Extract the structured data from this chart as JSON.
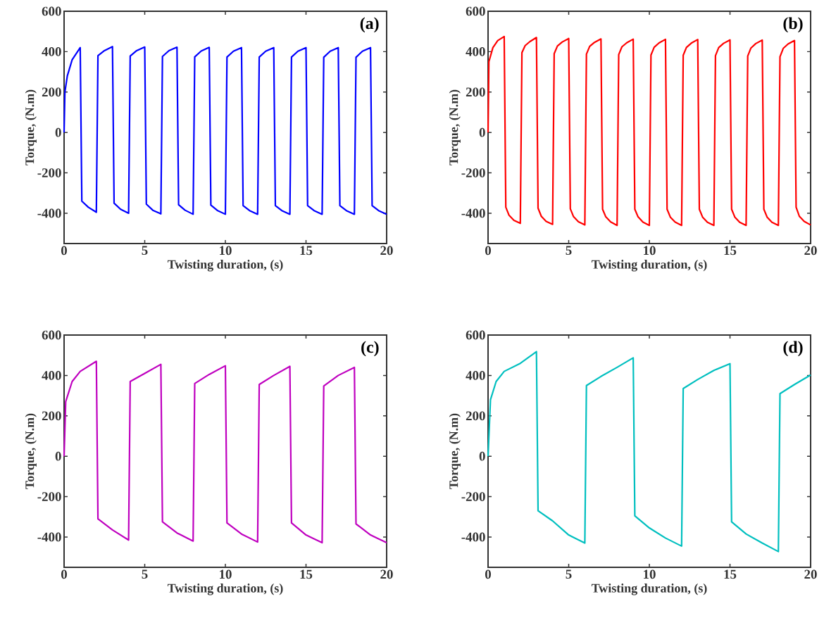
{
  "chart_data": [
    {
      "type": "line",
      "xlabel": "Twisting duration, (s)",
      "ylabel": "Torque, (N.m)",
      "xlim": [
        0,
        20
      ],
      "ylim": [
        -550,
        600
      ],
      "xticks": [
        0,
        5,
        10,
        15,
        20
      ],
      "yticks": [
        -400,
        -200,
        0,
        200,
        400,
        600
      ],
      "annotations": [
        "(a)"
      ],
      "series": [
        {
          "color": "#0000ff",
          "x": [
            0,
            0.05,
            0.2,
            0.5,
            1,
            1.1,
            1.5,
            2,
            2.1,
            2.5,
            3,
            3.1,
            3.5,
            4,
            4.1,
            4.5,
            5,
            5.1,
            5.5,
            6,
            6.1,
            6.5,
            7,
            7.1,
            7.5,
            8,
            8.1,
            8.5,
            9,
            9.1,
            9.5,
            10,
            10.1,
            10.5,
            11,
            11.1,
            11.5,
            12,
            12.1,
            12.5,
            13,
            13.1,
            13.5,
            14,
            14.1,
            14.5,
            15,
            15.1,
            15.5,
            16,
            16.1,
            16.5,
            17,
            17.1,
            17.5,
            18,
            18.1,
            18.5,
            19,
            19.1,
            19.5,
            20
          ],
          "values": [
            0,
            200,
            280,
            360,
            420,
            -340,
            -370,
            -395,
            380,
            405,
            425,
            -350,
            -380,
            -400,
            378,
            405,
            423,
            -355,
            -385,
            -403,
            376,
            405,
            422,
            -358,
            -385,
            -405,
            374,
            403,
            421,
            -360,
            -386,
            -405,
            373,
            402,
            420,
            -362,
            -387,
            -405,
            373,
            402,
            420,
            -362,
            -387,
            -405,
            373,
            402,
            420,
            -362,
            -387,
            -405,
            372,
            402,
            420,
            -362,
            -387,
            -405,
            372,
            402,
            420,
            -362,
            -387,
            -405
          ]
        }
      ]
    },
    {
      "type": "line",
      "xlabel": "Twisting duration, (s)",
      "ylabel": "Torque, (N.m)",
      "xlim": [
        0,
        20
      ],
      "ylim": [
        -550,
        600
      ],
      "xticks": [
        0,
        5,
        10,
        15,
        20
      ],
      "yticks": [
        -400,
        -200,
        0,
        200,
        400,
        600
      ],
      "annotations": [
        "(b)"
      ],
      "series": [
        {
          "color": "#ff0000",
          "x": [
            0,
            0.05,
            0.3,
            0.6,
            1,
            1.1,
            1.3,
            1.6,
            2,
            2.1,
            2.3,
            2.6,
            3,
            3.1,
            3.3,
            3.6,
            4,
            4.1,
            4.3,
            4.6,
            5,
            5.1,
            5.3,
            5.6,
            6,
            6.1,
            6.3,
            6.6,
            7,
            7.1,
            7.3,
            7.6,
            8,
            8.1,
            8.3,
            8.6,
            9,
            9.1,
            9.3,
            9.6,
            10,
            10.1,
            10.3,
            10.6,
            11,
            11.1,
            11.3,
            11.6,
            12,
            12.1,
            12.3,
            12.6,
            13,
            13.1,
            13.3,
            13.6,
            14,
            14.1,
            14.3,
            14.6,
            15,
            15.1,
            15.3,
            15.6,
            16,
            16.1,
            16.3,
            16.6,
            17,
            17.1,
            17.3,
            17.6,
            18,
            18.1,
            18.3,
            18.6,
            19,
            19.1,
            19.3,
            19.6,
            20
          ],
          "values": [
            0,
            350,
            420,
            455,
            475,
            -370,
            -410,
            -435,
            -450,
            395,
            430,
            450,
            470,
            -375,
            -415,
            -440,
            -455,
            390,
            428,
            448,
            465,
            -378,
            -417,
            -442,
            -458,
            388,
            426,
            446,
            463,
            -380,
            -418,
            -443,
            -460,
            385,
            424,
            444,
            462,
            -380,
            -418,
            -444,
            -460,
            383,
            422,
            443,
            461,
            -380,
            -419,
            -444,
            -460,
            382,
            421,
            442,
            460,
            -380,
            -419,
            -445,
            -460,
            380,
            420,
            441,
            458,
            -380,
            -419,
            -445,
            -460,
            378,
            418,
            440,
            457,
            -380,
            -419,
            -445,
            -460,
            375,
            416,
            438,
            455,
            -370,
            -415,
            -440,
            -458
          ]
        }
      ]
    },
    {
      "type": "line",
      "xlabel": "Twisting duration, (s)",
      "ylabel": "Torque, (N.m)",
      "xlim": [
        0,
        20
      ],
      "ylim": [
        -550,
        600
      ],
      "xticks": [
        0,
        5,
        10,
        15,
        20
      ],
      "yticks": [
        -400,
        -200,
        0,
        200,
        400,
        600
      ],
      "annotations": [
        "(c)"
      ],
      "series": [
        {
          "color": "#bf00bf",
          "x": [
            0,
            0.1,
            0.5,
            1,
            2,
            2.1,
            3,
            4,
            4.1,
            5,
            6,
            6.1,
            7,
            8,
            8.1,
            9,
            10,
            10.1,
            11,
            12,
            12.1,
            13,
            14,
            14.1,
            15,
            16,
            16.1,
            17,
            18,
            18.1,
            19,
            20
          ],
          "values": [
            0,
            270,
            370,
            420,
            470,
            -310,
            -365,
            -415,
            370,
            410,
            455,
            -325,
            -380,
            -420,
            360,
            405,
            448,
            -330,
            -385,
            -425,
            355,
            400,
            445,
            -330,
            -390,
            -428,
            348,
            400,
            440,
            -335,
            -390,
            -428
          ]
        }
      ]
    },
    {
      "type": "line",
      "xlabel": "Twisting duration, (s)",
      "ylabel": "Torque, (N.m)",
      "xlim": [
        0,
        20
      ],
      "ylim": [
        -550,
        600
      ],
      "xticks": [
        0,
        5,
        10,
        15,
        20
      ],
      "yticks": [
        -400,
        -200,
        0,
        200,
        400,
        600
      ],
      "annotations": [
        "(d)"
      ],
      "series": [
        {
          "color": "#00bfbf",
          "x": [
            0,
            0.15,
            0.5,
            1,
            2,
            3,
            3.1,
            4,
            5,
            6,
            6.1,
            7,
            8,
            9,
            9.1,
            10,
            11,
            12,
            12.1,
            13,
            14,
            15,
            15.1,
            16,
            17,
            18,
            18.1,
            19,
            20
          ],
          "values": [
            0,
            280,
            370,
            420,
            460,
            518,
            -270,
            -320,
            -390,
            -430,
            350,
            395,
            440,
            487,
            -295,
            -355,
            -405,
            -445,
            335,
            380,
            425,
            458,
            -325,
            -385,
            -430,
            -472,
            310,
            355,
            402
          ]
        }
      ]
    }
  ]
}
